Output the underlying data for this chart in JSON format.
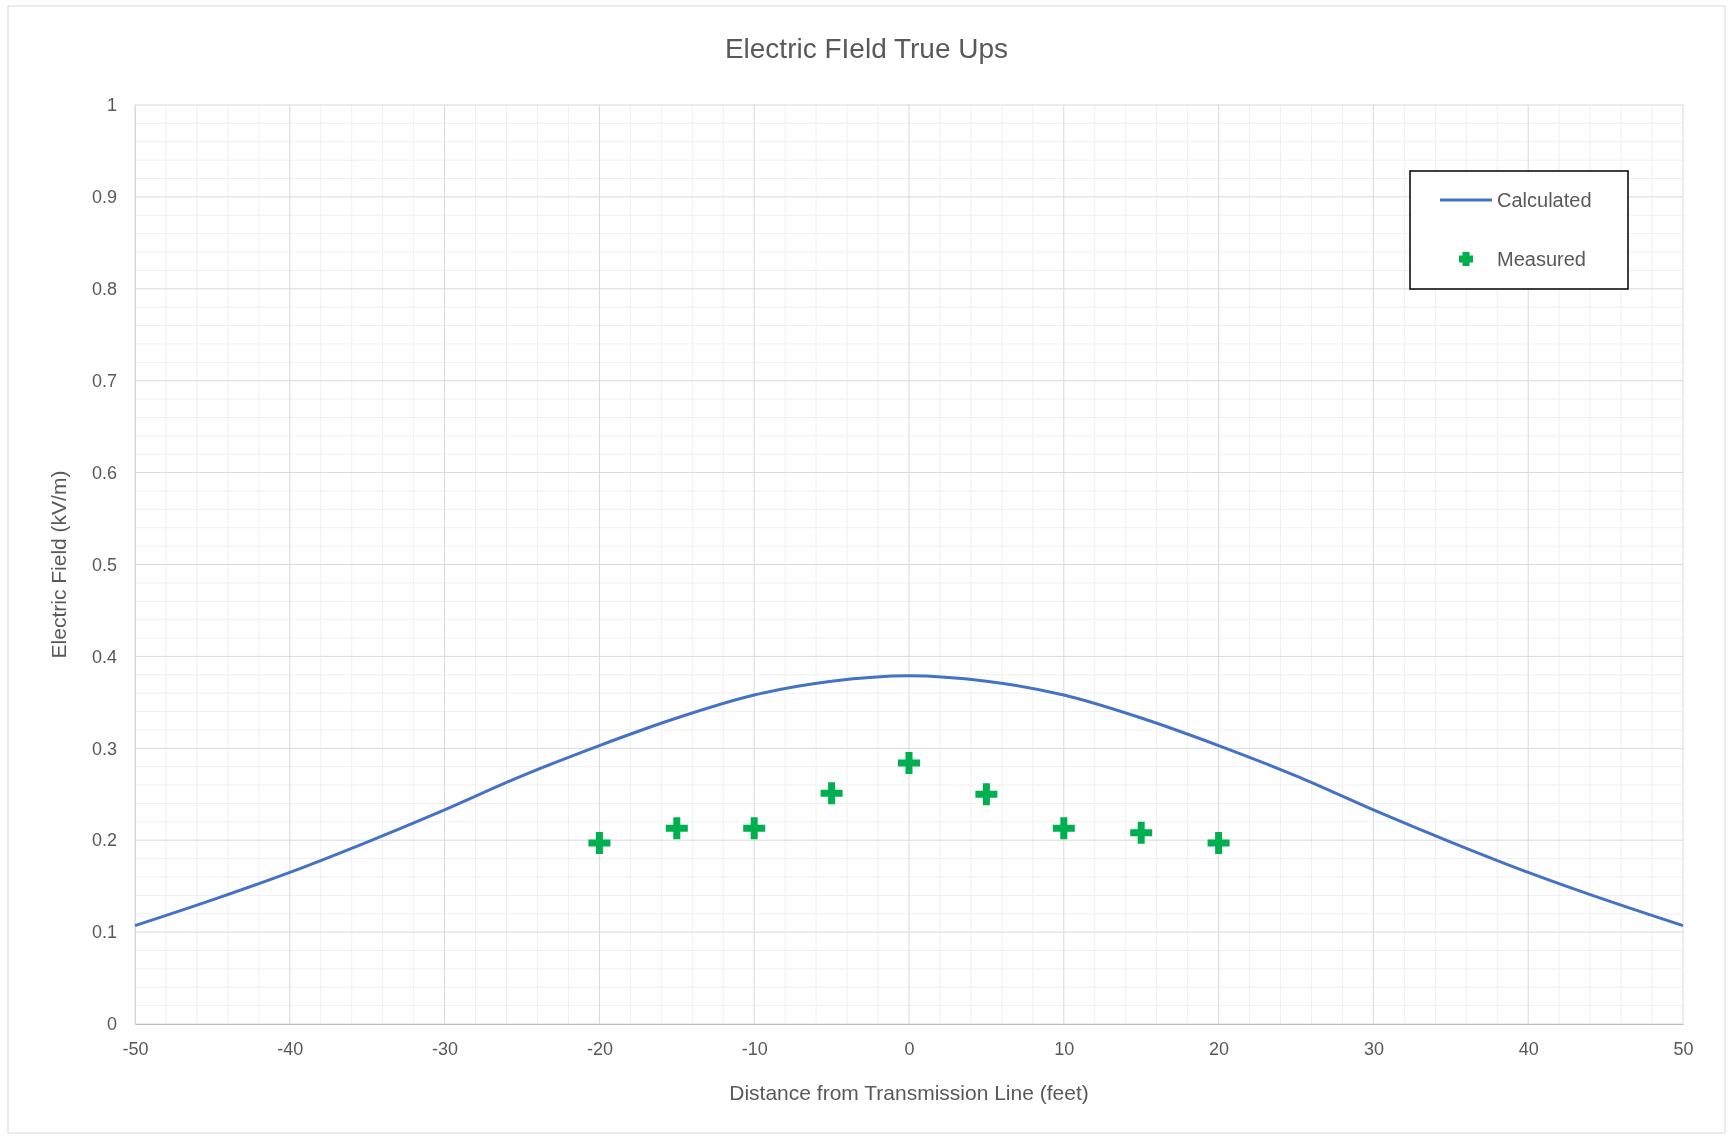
{
  "chart_data": {
    "type": "line",
    "title": "Electric FIeld True Ups",
    "xlabel": "Distance from Transmission Line (feet)",
    "ylabel": "Electric Field (kV/m)",
    "xlim": [
      -50,
      50
    ],
    "xticks": [
      -50,
      -40,
      -30,
      -20,
      -10,
      0,
      10,
      20,
      30,
      40,
      50
    ],
    "ylim": [
      0,
      1
    ],
    "yticks": [
      0,
      0.1,
      0.2,
      0.3,
      0.4,
      0.5,
      0.6,
      0.7,
      0.8,
      0.9,
      1
    ],
    "grid": true,
    "legend": "top right",
    "series": [
      {
        "name": "Calculated",
        "color": "#4472c4",
        "marker": "none",
        "x": [
          -50,
          -45,
          -40,
          -35,
          -30,
          -25,
          -20,
          -15,
          -10,
          -5,
          0,
          5,
          10,
          15,
          20,
          25,
          30,
          35,
          40,
          45,
          50
        ],
        "values": [
          0.107,
          0.135,
          0.165,
          0.198,
          0.233,
          0.27,
          0.303,
          0.333,
          0.358,
          0.373,
          0.379,
          0.373,
          0.358,
          0.333,
          0.303,
          0.27,
          0.233,
          0.198,
          0.165,
          0.135,
          0.107
        ]
      },
      {
        "name": "Measured",
        "type": "scatter",
        "color": "#00b050",
        "marker": "cross",
        "x": [
          -20,
          -15,
          -10,
          -5,
          0,
          5,
          10,
          15,
          20
        ],
        "values": [
          0.197,
          0.213,
          0.213,
          0.251,
          0.284,
          0.25,
          0.213,
          0.208,
          0.197
        ]
      }
    ]
  }
}
